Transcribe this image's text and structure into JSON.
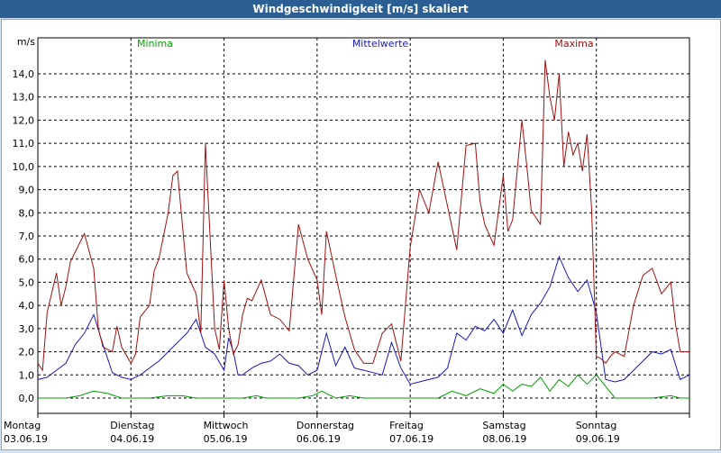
{
  "window": {
    "title": "Windgeschwindigkeit [m/s] skaliert"
  },
  "chart_data": {
    "type": "line",
    "title": "Windgeschwindigkeit [m/s] skaliert",
    "ylabel": "m/s",
    "ylim": [
      0,
      15
    ],
    "y_ticks": [
      "0,0",
      "1,0",
      "2,0",
      "3,0",
      "4,0",
      "5,0",
      "6,0",
      "7,0",
      "8,0",
      "9,0",
      "10,0",
      "11,0",
      "12,0",
      "13,0",
      "14,0"
    ],
    "x_range": [
      0,
      7
    ],
    "days": [
      {
        "weekday": "Montag",
        "date": "03.06.19"
      },
      {
        "weekday": "Dienstag",
        "date": "04.06.19"
      },
      {
        "weekday": "Mittwoch",
        "date": "05.06.19"
      },
      {
        "weekday": "Donnerstag",
        "date": "06.06.19"
      },
      {
        "weekday": "Freitag",
        "date": "07.06.19"
      },
      {
        "weekday": "Samstag",
        "date": "08.06.19"
      },
      {
        "weekday": "Sonntag",
        "date": "09.06.19"
      }
    ],
    "legend_placement": "top",
    "grid": true,
    "series": [
      {
        "name": "Minima",
        "color": "#00a000",
        "x": [
          0,
          0.3,
          0.45,
          0.6,
          0.75,
          0.9,
          1.0,
          1.2,
          1.4,
          1.55,
          1.7,
          1.85,
          2.0,
          2.2,
          2.35,
          2.45,
          2.6,
          2.8,
          2.95,
          3.05,
          3.2,
          3.35,
          3.5,
          3.7,
          3.9,
          4.1,
          4.3,
          4.45,
          4.6,
          4.75,
          4.9,
          5.0,
          5.1,
          5.2,
          5.3,
          5.4,
          5.5,
          5.6,
          5.7,
          5.8,
          5.9,
          6.0,
          6.1,
          6.2,
          6.4,
          6.6,
          6.8,
          6.9,
          7.0
        ],
        "values": [
          0.0,
          0.0,
          0.1,
          0.3,
          0.2,
          0.0,
          0.0,
          0.0,
          0.1,
          0.1,
          0.0,
          0.0,
          0.0,
          0.0,
          0.1,
          0.0,
          0.0,
          0.0,
          0.1,
          0.3,
          0.0,
          0.1,
          0.0,
          0.0,
          0.0,
          0.0,
          0.0,
          0.3,
          0.1,
          0.4,
          0.2,
          0.6,
          0.3,
          0.6,
          0.5,
          0.9,
          0.3,
          0.8,
          0.5,
          1.0,
          0.6,
          1.0,
          0.5,
          0.0,
          0.0,
          0.0,
          0.1,
          0.0,
          0.0
        ]
      },
      {
        "name": "Mittelwerte",
        "color": "#1818c0",
        "x": [
          0,
          0.1,
          0.2,
          0.3,
          0.4,
          0.5,
          0.6,
          0.7,
          0.8,
          0.9,
          1.0,
          1.1,
          1.2,
          1.3,
          1.4,
          1.5,
          1.6,
          1.7,
          1.8,
          1.9,
          2.0,
          2.05,
          2.1,
          2.15,
          2.2,
          2.3,
          2.4,
          2.5,
          2.6,
          2.7,
          2.8,
          2.9,
          3.0,
          3.1,
          3.2,
          3.3,
          3.4,
          3.5,
          3.6,
          3.7,
          3.8,
          3.9,
          4.0,
          4.1,
          4.2,
          4.3,
          4.4,
          4.5,
          4.6,
          4.7,
          4.8,
          4.9,
          5.0,
          5.1,
          5.2,
          5.3,
          5.4,
          5.5,
          5.6,
          5.7,
          5.8,
          5.9,
          6.0,
          6.1,
          6.2,
          6.3,
          6.4,
          6.5,
          6.6,
          6.7,
          6.8,
          6.9,
          7.0
        ],
        "values": [
          0.8,
          0.9,
          1.2,
          1.5,
          2.3,
          2.8,
          3.6,
          2.3,
          1.1,
          0.9,
          0.8,
          1.0,
          1.3,
          1.6,
          2.0,
          2.4,
          2.8,
          3.4,
          2.2,
          1.9,
          1.2,
          2.6,
          2.0,
          1.0,
          1.0,
          1.3,
          1.5,
          1.6,
          1.9,
          1.5,
          1.4,
          1.0,
          1.2,
          2.8,
          1.4,
          2.2,
          1.3,
          1.2,
          1.1,
          1.0,
          2.4,
          1.3,
          0.6,
          0.7,
          0.8,
          0.9,
          1.3,
          2.8,
          2.5,
          3.1,
          2.9,
          3.4,
          2.8,
          3.8,
          2.7,
          3.6,
          4.1,
          4.8,
          6.1,
          5.2,
          4.6,
          5.1,
          3.7,
          0.8,
          0.7,
          0.8,
          1.2,
          1.6,
          2.0,
          1.9,
          2.1,
          0.8,
          1.0
        ]
      },
      {
        "name": "Maxima",
        "color": "#a01010",
        "x": [
          0,
          0.05,
          0.1,
          0.2,
          0.25,
          0.3,
          0.35,
          0.4,
          0.5,
          0.6,
          0.65,
          0.7,
          0.8,
          0.85,
          0.9,
          1.0,
          1.05,
          1.1,
          1.2,
          1.25,
          1.3,
          1.4,
          1.45,
          1.5,
          1.6,
          1.7,
          1.75,
          1.8,
          1.9,
          1.95,
          2.0,
          2.05,
          2.1,
          2.15,
          2.2,
          2.25,
          2.3,
          2.4,
          2.5,
          2.6,
          2.7,
          2.8,
          2.9,
          3.0,
          3.05,
          3.1,
          3.2,
          3.3,
          3.4,
          3.5,
          3.6,
          3.7,
          3.8,
          3.9,
          4.0,
          4.1,
          4.2,
          4.3,
          4.4,
          4.5,
          4.6,
          4.7,
          4.75,
          4.8,
          4.9,
          5.0,
          5.05,
          5.1,
          5.2,
          5.25,
          5.3,
          5.4,
          5.45,
          5.5,
          5.55,
          5.6,
          5.65,
          5.7,
          5.75,
          5.8,
          5.85,
          5.9,
          5.95,
          6.0,
          6.05,
          6.1,
          6.15,
          6.2,
          6.3,
          6.4,
          6.5,
          6.6,
          6.7,
          6.8,
          6.85,
          6.9,
          7.0
        ],
        "values": [
          1.5,
          1.2,
          3.7,
          5.4,
          4.0,
          4.8,
          5.9,
          6.3,
          7.1,
          5.6,
          3.0,
          2.2,
          2.0,
          3.1,
          2.2,
          1.5,
          1.9,
          3.5,
          4.0,
          5.5,
          6.0,
          8.0,
          9.6,
          9.8,
          5.4,
          4.5,
          2.8,
          11.0,
          3.0,
          2.1,
          5.1,
          3.0,
          1.9,
          2.3,
          3.6,
          4.3,
          4.2,
          5.1,
          3.6,
          3.4,
          2.9,
          7.5,
          6.0,
          5.1,
          3.6,
          7.2,
          5.3,
          3.5,
          2.1,
          1.5,
          1.5,
          2.8,
          3.2,
          1.6,
          6.5,
          9.0,
          8.0,
          10.2,
          8.3,
          6.4,
          10.9,
          11.0,
          8.5,
          7.5,
          6.6,
          9.6,
          7.2,
          7.7,
          12.0,
          10.1,
          8.1,
          7.5,
          14.6,
          13.0,
          12.0,
          14.0,
          10.0,
          11.5,
          10.5,
          11.0,
          9.8,
          11.4,
          8.1,
          1.8,
          1.7,
          1.5,
          1.8,
          2.0,
          1.8,
          4.0,
          5.3,
          5.6,
          4.5,
          5.0,
          3.2,
          2.0,
          2.0
        ]
      }
    ]
  }
}
